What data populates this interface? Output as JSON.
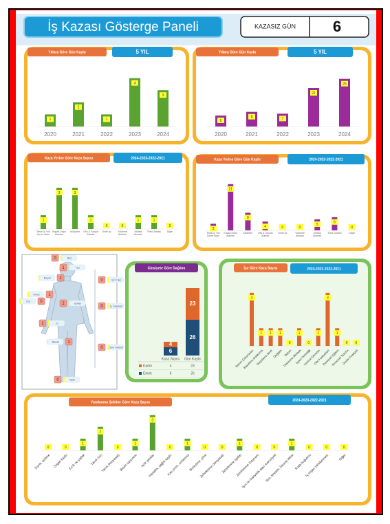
{
  "header": {
    "title": "İş Kazası Gösterge Paneli",
    "counter_label": "KAZASIZ GÜN",
    "counter_value": 6
  },
  "chart_data": [
    {
      "type": "bar",
      "title": "Yıllara Göre Gün Kaybı",
      "subtitle": "5 YIL",
      "categories": [
        "2020",
        "2021",
        "2022",
        "2023",
        "2024"
      ],
      "values": [
        1,
        2,
        1,
        4,
        3
      ],
      "color": "#5ba331",
      "ylim": [
        0,
        5
      ]
    },
    {
      "type": "bar",
      "title": "Yıllara Göre Gün Kaybı",
      "subtitle": "5 YIL",
      "categories": [
        "2020",
        "2021",
        "2022",
        "2023",
        "2024"
      ],
      "values": [
        6,
        8,
        7,
        21,
        26
      ],
      "color": "#9b2b98",
      "ylim": [
        0,
        30
      ]
    },
    {
      "type": "bar",
      "title": "Kaza Yerine Göre Kaza Sayısı",
      "subtitle": "2024-2023-2022-2021",
      "categories": [
        "Tesis İçi Yol/Çevre Alanı",
        "Kapalı Depo Alanları",
        "Atölyeler",
        "Ofis & Sosyal Alanlar",
        "Ünite İçi",
        "Yükleme Alanları",
        "Mutfak Alanları",
        "Tesis Sahası",
        "Diğer"
      ],
      "values": [
        1,
        3,
        3,
        1,
        0,
        0,
        1,
        1,
        0
      ],
      "color": "#5ba331",
      "ylim": [
        0,
        4
      ]
    },
    {
      "type": "bar",
      "title": "Kaza Yerine Göre Gün Kaybı",
      "subtitle": "2024-2023-2022-2021",
      "categories": [
        "Tesis İçi Yol/Çevre Alanı",
        "Kapalı Depo Alanları",
        "Atölyeler",
        "Ofis & Sosyal Alanlar",
        "Ünite İçi",
        "Yükleme Alanları",
        "Mutfak Alanları",
        "Tesis Sahası",
        "Diğer"
      ],
      "values": [
        3,
        21,
        8,
        4,
        0,
        0,
        5,
        6,
        0
      ],
      "color": "#9b2b98",
      "ylim": [
        0,
        25
      ]
    },
    {
      "type": "body",
      "categories": [
        "Baş",
        "Yüz",
        "Boyun",
        "Omuz",
        "Kol",
        "Gövde",
        "El",
        "Bacak",
        "Ayak",
        "Sırt / Bel",
        "İç Organlar",
        "Sinir Sistemi"
      ],
      "values": [
        0,
        1,
        1,
        1,
        0,
        2,
        1,
        1,
        0,
        0,
        0,
        0
      ]
    },
    {
      "type": "stacked-bar",
      "title": "Cinsiyete Göre Dağılım",
      "categories": [
        "Kaza Sayısı",
        "Gün Kaybı"
      ],
      "series": [
        {
          "name": "Kadın",
          "color": "#e0672c",
          "values": [
            4,
            23
          ]
        },
        {
          "name": "Erkek",
          "color": "#1f4e79",
          "values": [
            6,
            26
          ]
        }
      ],
      "ylim": [
        0,
        50
      ]
    },
    {
      "type": "bar",
      "title": "İşe Göre Kaza Sayısı",
      "subtitle": "2024-2023-2022-2021",
      "categories": [
        "Bakım Çalışmaları",
        "Boşaltma-Doldurma",
        "Depolama-Sevk",
        "Değişim",
        "Dolum",
        "Dinlenme-Molada",
        "İşyeri Temizliği",
        "Kontrol-Denetim",
        "Ofis Faaliyetleri",
        "Personel Eğitimi",
        "Personel Taşıma",
        "Üretim Faaliyeti"
      ],
      "values": [
        3,
        1,
        1,
        1,
        0,
        1,
        0,
        1,
        3,
        1,
        0,
        0
      ],
      "color": "#e0672c",
      "ylim": [
        0,
        3.5
      ]
    },
    {
      "type": "bar",
      "title": "Yaralanma Şekline Göre Kaza Sayısı",
      "subtitle": "2024-2023-2022-2021",
      "categories": [
        "Sıyrık, çizilme",
        "Organ kaybı",
        "Kırık ve çatlak",
        "Yanık (ısı)",
        "Yanık (kimyasal)",
        "Beyin sarsıntısı",
        "Açık yaralar",
        "Hastalık, sağlık kaybı",
        "Kas yırtık, zorlanma",
        "Burkulma, çıkık",
        "Zehirlenme (kimyasal)",
        "Zehirlenme (gıda)",
        "Zehirlenme (hayvan)",
        "Işın ve manyetik alan maruziyeti",
        "Ses, titreşim, basınç etkisi",
        "Suda boğulma",
        "İç organ yaralanması",
        "Diğer"
      ],
      "values": [
        0,
        0,
        1,
        2,
        0,
        1,
        3,
        0,
        1,
        0,
        0,
        1,
        0,
        0,
        1,
        0,
        0,
        0
      ],
      "color": "#5ba331",
      "ylim": [
        0,
        3.5
      ]
    }
  ]
}
